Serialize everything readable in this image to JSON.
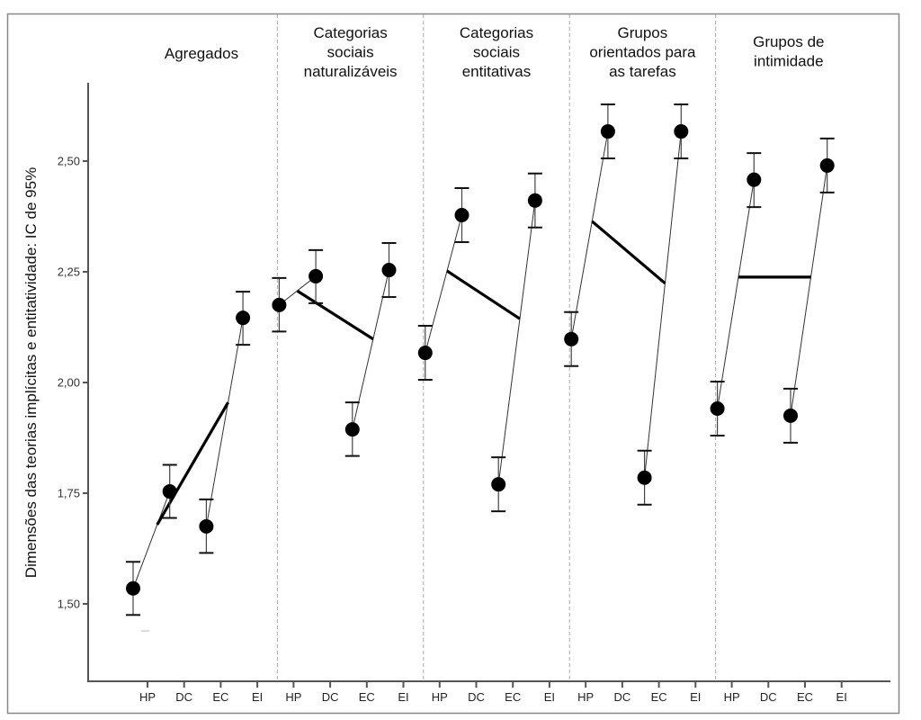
{
  "chart_data": {
    "type": "scatter",
    "subtype": "interaction-error-bar-plot",
    "title": "",
    "ylabel": "Dimensões das teorias implícitas e entitatividade: IC de 95%",
    "xlabel": "",
    "ylim": [
      1.37,
      2.67
    ],
    "yticks": [
      1.5,
      1.75,
      2.0,
      2.25,
      2.5
    ],
    "ytick_labels": [
      "1,50",
      "1,75",
      "2,00",
      "2,25",
      "2,50"
    ],
    "categories": [
      "HP",
      "DC",
      "EC",
      "EI"
    ],
    "grid": false,
    "legend": "none",
    "panels": [
      {
        "title_lines": [
          "Agregados"
        ],
        "points": [
          {
            "category": "HP",
            "mean": 1.535,
            "ci_low": 1.475,
            "ci_high": 1.595
          },
          {
            "category": "DC",
            "mean": 1.754,
            "ci_low": 1.694,
            "ci_high": 1.814
          },
          {
            "category": "EC",
            "mean": 1.675,
            "ci_low": 1.615,
            "ci_high": 1.736
          },
          {
            "category": "EI",
            "mean": 2.146,
            "ci_low": 2.085,
            "ci_high": 2.205
          }
        ],
        "interaction_line": [
          1.679,
          1.955
        ]
      },
      {
        "title_lines": [
          "Categorias",
          "sociais",
          "naturalizáveis"
        ],
        "points": [
          {
            "category": "HP",
            "mean": 2.175,
            "ci_low": 2.115,
            "ci_high": 2.236
          },
          {
            "category": "DC",
            "mean": 2.24,
            "ci_low": 2.179,
            "ci_high": 2.299
          },
          {
            "category": "EC",
            "mean": 1.894,
            "ci_low": 1.834,
            "ci_high": 1.955
          },
          {
            "category": "EI",
            "mean": 2.254,
            "ci_low": 2.193,
            "ci_high": 2.315
          }
        ],
        "interaction_line": [
          2.207,
          2.098
        ]
      },
      {
        "title_lines": [
          "Categorias",
          "sociais",
          "entitativas"
        ],
        "points": [
          {
            "category": "HP",
            "mean": 2.067,
            "ci_low": 2.006,
            "ci_high": 2.128
          },
          {
            "category": "DC",
            "mean": 2.378,
            "ci_low": 2.317,
            "ci_high": 2.439
          },
          {
            "category": "EC",
            "mean": 1.77,
            "ci_low": 1.709,
            "ci_high": 1.831
          },
          {
            "category": "EI",
            "mean": 2.411,
            "ci_low": 2.35,
            "ci_high": 2.472
          }
        ],
        "interaction_line": [
          2.252,
          2.144
        ]
      },
      {
        "title_lines": [
          "Grupos",
          "orientados para",
          "as tarefas"
        ],
        "points": [
          {
            "category": "HP",
            "mean": 2.098,
            "ci_low": 2.037,
            "ci_high": 2.159
          },
          {
            "category": "DC",
            "mean": 2.567,
            "ci_low": 2.506,
            "ci_high": 2.628
          },
          {
            "category": "EC",
            "mean": 1.785,
            "ci_low": 1.724,
            "ci_high": 1.846
          },
          {
            "category": "EI",
            "mean": 2.567,
            "ci_low": 2.506,
            "ci_high": 2.628
          }
        ],
        "interaction_line": [
          2.364,
          2.224
        ]
      },
      {
        "title_lines": [
          "Grupos de",
          "intimidade"
        ],
        "points": [
          {
            "category": "HP",
            "mean": 1.941,
            "ci_low": 1.88,
            "ci_high": 2.002
          },
          {
            "category": "DC",
            "mean": 2.458,
            "ci_low": 2.396,
            "ci_high": 2.518
          },
          {
            "category": "EC",
            "mean": 1.925,
            "ci_low": 1.864,
            "ci_high": 1.986
          },
          {
            "category": "EI",
            "mean": 2.49,
            "ci_low": 2.429,
            "ci_high": 2.551
          }
        ],
        "interaction_line": [
          2.238,
          2.238
        ]
      }
    ]
  },
  "colors": {
    "marker": "#000000",
    "axis": "#555555",
    "frame": "#888888",
    "divider": "#aaaaaa",
    "thin_line": "#333333",
    "thick_line": "#000000"
  }
}
